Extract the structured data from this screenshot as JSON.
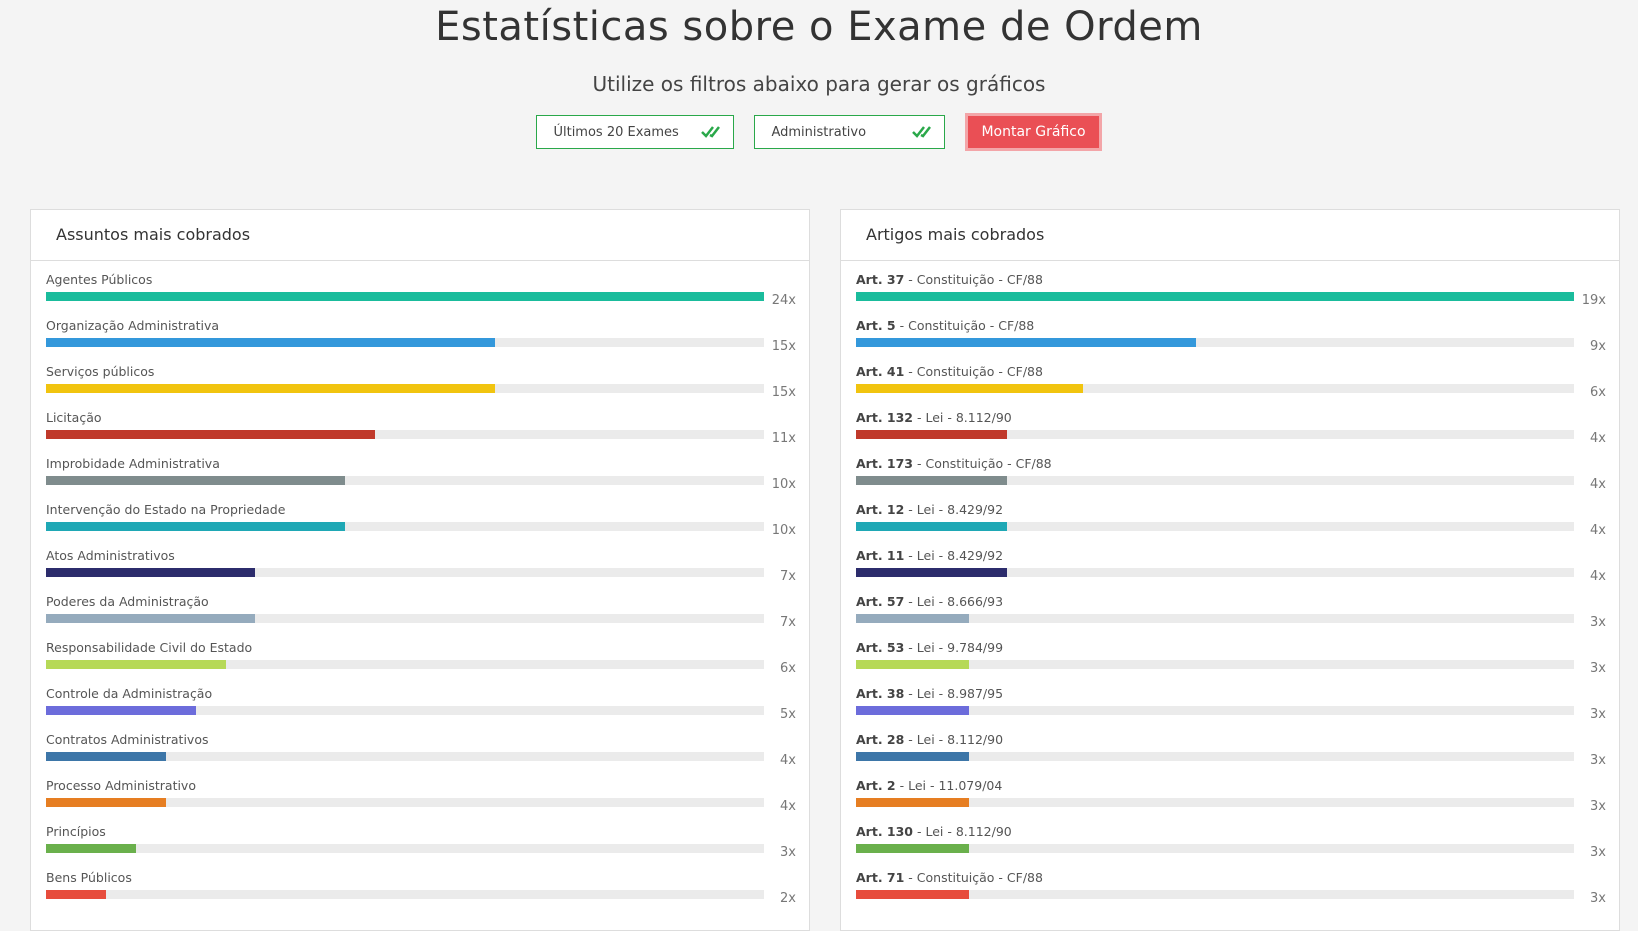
{
  "header": {
    "title": "Estatísticas sobre o Exame de Ordem",
    "subtitle": "Utilize os filtros abaixo para gerar os gráficos"
  },
  "filters": [
    "Últimos 20 Exames",
    "Administrativo"
  ],
  "button": "Montar Gráfico",
  "chart_data": [
    {
      "type": "bar",
      "title": "Assuntos mais cobrados",
      "categories": [
        "Agentes Públicos",
        "Organização Administrativa",
        "Serviços públicos",
        "Licitação",
        "Improbidade Administrativa",
        "Intervenção do Estado na Propriedade",
        "Atos Administrativos",
        "Poderes da Administração",
        "Responsabilidade Civil do Estado",
        "Controle da Administração",
        "Contratos Administrativos",
        "Processo Administrativo",
        "Princípios",
        "Bens Públicos"
      ],
      "values": [
        24,
        15,
        15,
        11,
        10,
        10,
        7,
        7,
        6,
        5,
        4,
        4,
        3,
        2
      ],
      "value_labels": [
        "24x",
        "15x",
        "15x",
        "11x",
        "10x",
        "10x",
        "7x",
        "7x",
        "6x",
        "5x",
        "4x",
        "4x",
        "3x",
        "2x"
      ],
      "colors": [
        "#1abc9c",
        "#3498db",
        "#f1c40f",
        "#c0392b",
        "#7f8c8d",
        "#1fa8b5",
        "#2c2c6c",
        "#95abbd",
        "#b6d957",
        "#6c6cdb",
        "#3d76a8",
        "#e67e22",
        "#6ab04c",
        "#e74c3c"
      ]
    },
    {
      "type": "bar",
      "title": "Artigos mais cobrados",
      "categories": [
        "Art. 37",
        "Art. 5",
        "Art. 41",
        "Art. 132",
        "Art. 173",
        "Art. 12",
        "Art. 11",
        "Art. 57",
        "Art. 53",
        "Art. 38",
        "Art. 28",
        "Art. 2",
        "Art. 130",
        "Art. 71"
      ],
      "sources": [
        "- Constituição - CF/88",
        "- Constituição - CF/88",
        "- Constituição - CF/88",
        "- Lei - 8.112/90",
        "- Constituição - CF/88",
        "- Lei - 8.429/92",
        "- Lei - 8.429/92",
        "- Lei - 8.666/93",
        "- Lei - 9.784/99",
        "- Lei - 8.987/95",
        "- Lei - 8.112/90",
        "- Lei - 11.079/04",
        "- Lei - 8.112/90",
        "- Constituição - CF/88"
      ],
      "values": [
        19,
        9,
        6,
        4,
        4,
        4,
        4,
        3,
        3,
        3,
        3,
        3,
        3,
        3
      ],
      "value_labels": [
        "19x",
        "9x",
        "6x",
        "4x",
        "4x",
        "4x",
        "4x",
        "3x",
        "3x",
        "3x",
        "3x",
        "3x",
        "3x",
        "3x"
      ],
      "colors": [
        "#1abc9c",
        "#3498db",
        "#f1c40f",
        "#c0392b",
        "#7f8c8d",
        "#1fa8b5",
        "#2c2c6c",
        "#95abbd",
        "#b6d957",
        "#6c6cdb",
        "#3d76a8",
        "#e67e22",
        "#6ab04c",
        "#e74c3c"
      ]
    }
  ]
}
